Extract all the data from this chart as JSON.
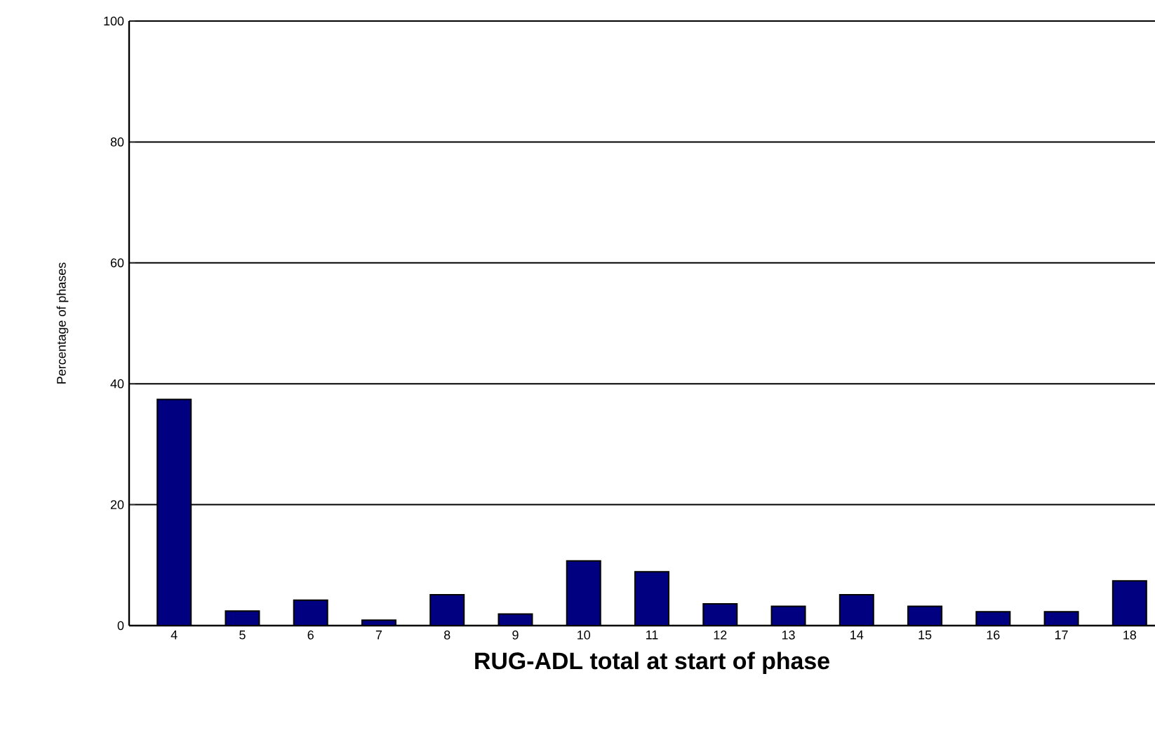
{
  "chart_data": {
    "type": "bar",
    "xlabel": "RUG-ADL total at start of phase",
    "ylabel": "Percentage of phases",
    "categories": [
      "4",
      "5",
      "6",
      "7",
      "8",
      "9",
      "10",
      "11",
      "12",
      "13",
      "14",
      "15",
      "16",
      "17",
      "18"
    ],
    "values": [
      37.4,
      2.4,
      4.2,
      0.9,
      5.1,
      1.9,
      10.7,
      8.9,
      3.6,
      3.2,
      5.1,
      3.2,
      2.3,
      2.3,
      7.4
    ],
    "color": "#000080",
    "ylim": [
      0,
      100
    ],
    "yticks": [
      0,
      20,
      40,
      60,
      80,
      100
    ],
    "grid": "y"
  }
}
